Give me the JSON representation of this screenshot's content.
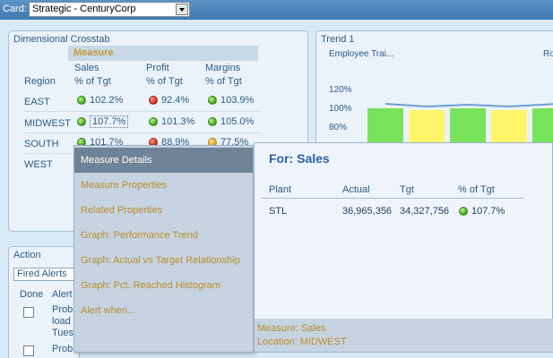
{
  "topbar": {
    "card_label": "Card:",
    "card_value": "Strategic - CenturyCorp"
  },
  "crosstab": {
    "title": "Dimensional Crosstab",
    "measure_label": "Measure",
    "region_label": "Region",
    "columns": [
      {
        "line1": "Sales",
        "line2": "% of Tgt"
      },
      {
        "line1": "Profit",
        "line2": "% of Tgt"
      },
      {
        "line1": "Margins",
        "line2": "% of Tgt"
      }
    ],
    "rows": [
      {
        "region": "EAST",
        "cells": [
          {
            "value": "102.2%",
            "status": "green"
          },
          {
            "value": "92.4%",
            "status": "red"
          },
          {
            "value": "103.9%",
            "status": "green"
          }
        ]
      },
      {
        "region": "MIDWEST",
        "cells": [
          {
            "value": "107.7%",
            "status": "green"
          },
          {
            "value": "101.3%",
            "status": "green"
          },
          {
            "value": "105.0%",
            "status": "green"
          }
        ]
      },
      {
        "region": "SOUTH",
        "cells": [
          {
            "value": "101.7%",
            "status": "green"
          },
          {
            "value": "88.9%",
            "status": "red"
          },
          {
            "value": "77.5%",
            "status": "yellow"
          }
        ]
      },
      {
        "region": "WEST",
        "cells": [
          {
            "value": "",
            "status": ""
          },
          {
            "value": "",
            "status": ""
          },
          {
            "value": "",
            "status": ""
          }
        ]
      }
    ]
  },
  "trend": {
    "title": "Trend 1",
    "subtitle_left": "Employee Trai...",
    "subtitle_right": "Ro",
    "y_ticks": [
      "120%",
      "100%",
      "80%"
    ]
  },
  "action": {
    "title": "Action",
    "filter_value": "Fired Alerts",
    "col_done": "Done",
    "col_alert": "Alert",
    "alert1_lines": [
      "Probl",
      "load",
      "Tues"
    ],
    "alert2_line": "Probl"
  },
  "menu": {
    "items": [
      "Measure Details",
      "Measure Properties",
      "Related Properties",
      "Graph: Performance Trend",
      "Graph: Actual vs Target Relationship",
      "Graph: Pct. Reached Histogram",
      "Alert when..."
    ]
  },
  "details": {
    "title": "For: Sales",
    "headers": {
      "plant": "Plant",
      "actual": "Actual",
      "tgt": "Tgt",
      "pct": "% of Tgt"
    },
    "row": {
      "plant": "STL",
      "actual": "36,965,356",
      "tgt": "34,327,756",
      "pct": "107.7%"
    },
    "footer_measure": "Measure: Sales",
    "footer_location": "Location: MIDWEST"
  },
  "colors": {
    "green": "#3aa316",
    "red": "#c22619",
    "yellow": "#e3a414",
    "accent": "#2b62a8"
  }
}
